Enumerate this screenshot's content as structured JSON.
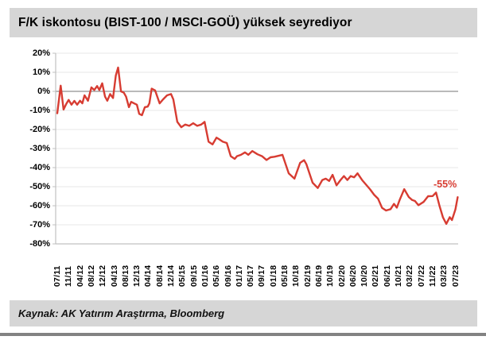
{
  "title": "F/K iskontosu (BIST-100 / MSCI-GOÜ) yüksek seyrediyor",
  "source": "Kaynak: AK Yatırım Araştırma, Bloomberg",
  "annotation_text": "-55%",
  "colors": {
    "line": "#d73c32",
    "annotation": "#d73c32",
    "panel_bg": "#d6d6d6",
    "grid": "#e7e7e7",
    "zero_line": "#a3a3a3",
    "axis": "#c0c0c0"
  },
  "chart_data": {
    "type": "line",
    "title": "F/K iskontosu (BIST-100 / MSCI-GOÜ) yüksek seyrediyor",
    "xlabel": "",
    "ylabel": "",
    "ylim": [
      -80,
      20
    ],
    "grid": "horizontal",
    "legend": "none",
    "yticklabels": [
      "20%",
      "10%",
      "0%",
      "-10%",
      "-20%",
      "-30%",
      "-40%",
      "-50%",
      "-60%",
      "-70%",
      "-80%"
    ],
    "yticks": [
      20,
      10,
      0,
      -10,
      -20,
      -30,
      -40,
      -50,
      -60,
      -70,
      -80
    ],
    "xticklabels": [
      "07/11",
      "11/11",
      "04/12",
      "08/12",
      "12/12",
      "04/13",
      "08/13",
      "12/13",
      "04/14",
      "08/14",
      "12/14",
      "05/15",
      "09/15",
      "01/16",
      "05/16",
      "09/16",
      "01/17",
      "05/17",
      "09/17",
      "01/18",
      "05/18",
      "10/18",
      "02/19",
      "06/19",
      "10/19",
      "02/20",
      "06/20",
      "10/20",
      "02/21",
      "06/21",
      "10/21",
      "03/22",
      "07/22",
      "11/22",
      "03/23",
      "07/23"
    ],
    "annotation": {
      "text": "-55%",
      "at_x": "07/23",
      "value": -55
    },
    "series": [
      {
        "name": "F/K iskontosu (BIST-100 / MSCI-GOÜ)",
        "color": "#d73c32",
        "points": [
          [
            0,
            -11.5
          ],
          [
            0.3,
            3
          ],
          [
            0.55,
            -9.5
          ],
          [
            0.8,
            -6.5
          ],
          [
            1.0,
            -4.5
          ],
          [
            1.25,
            -7
          ],
          [
            1.5,
            -5
          ],
          [
            1.75,
            -7
          ],
          [
            2.0,
            -4.9
          ],
          [
            2.2,
            -6.3
          ],
          [
            2.4,
            -2.1
          ],
          [
            2.7,
            -4.9
          ],
          [
            3.0,
            2.1
          ],
          [
            3.25,
            0.7
          ],
          [
            3.5,
            2.8
          ],
          [
            3.7,
            0.7
          ],
          [
            3.95,
            4.2
          ],
          [
            4.2,
            -2.8
          ],
          [
            4.4,
            -4.9
          ],
          [
            4.65,
            -1.4
          ],
          [
            4.9,
            -3.5
          ],
          [
            5.15,
            8.3
          ],
          [
            5.35,
            12.5
          ],
          [
            5.6,
            0
          ],
          [
            5.85,
            -0.7
          ],
          [
            6.05,
            -2.8
          ],
          [
            6.3,
            -8.3
          ],
          [
            6.5,
            -5.5
          ],
          [
            6.75,
            -6.3
          ],
          [
            7.0,
            -7
          ],
          [
            7.2,
            -11.8
          ],
          [
            7.45,
            -12.5
          ],
          [
            7.7,
            -8.3
          ],
          [
            7.95,
            -8
          ],
          [
            8.1,
            -6.3
          ],
          [
            8.3,
            1.4
          ],
          [
            8.6,
            0.5
          ],
          [
            9.0,
            -6.3
          ],
          [
            9.3,
            -4.2
          ],
          [
            9.65,
            -2.1
          ],
          [
            10.0,
            -1.4
          ],
          [
            10.2,
            -4.2
          ],
          [
            10.55,
            -16
          ],
          [
            10.9,
            -18.8
          ],
          [
            11.25,
            -17.4
          ],
          [
            11.6,
            -18.1
          ],
          [
            11.95,
            -16.7
          ],
          [
            12.3,
            -18.1
          ],
          [
            12.65,
            -17.4
          ],
          [
            12.95,
            -16
          ],
          [
            13.3,
            -26.4
          ],
          [
            13.65,
            -27.8
          ],
          [
            14.0,
            -24.3
          ],
          [
            14.2,
            -25
          ],
          [
            14.55,
            -26.4
          ],
          [
            14.9,
            -27.1
          ],
          [
            15.25,
            -34
          ],
          [
            15.6,
            -35.4
          ],
          [
            15.8,
            -34
          ],
          [
            16.15,
            -33.3
          ],
          [
            16.5,
            -32
          ],
          [
            16.8,
            -33.3
          ],
          [
            17.15,
            -31.3
          ],
          [
            17.6,
            -33
          ],
          [
            18.0,
            -34
          ],
          [
            18.4,
            -36
          ],
          [
            18.75,
            -34.6
          ],
          [
            19.1,
            -34.3
          ],
          [
            19.8,
            -33.3
          ],
          [
            20.35,
            -43
          ],
          [
            20.85,
            -45.8
          ],
          [
            21.35,
            -37.5
          ],
          [
            21.7,
            -36.1
          ],
          [
            21.9,
            -38.2
          ],
          [
            22.45,
            -47.9
          ],
          [
            22.9,
            -50.7
          ],
          [
            23.3,
            -46.5
          ],
          [
            23.6,
            -45.8
          ],
          [
            23.9,
            -47
          ],
          [
            24.2,
            -43.8
          ],
          [
            24.55,
            -49.3
          ],
          [
            24.9,
            -46.5
          ],
          [
            25.2,
            -44.4
          ],
          [
            25.5,
            -46.5
          ],
          [
            25.8,
            -44.4
          ],
          [
            26.1,
            -45.1
          ],
          [
            26.4,
            -43
          ],
          [
            26.8,
            -46.5
          ],
          [
            27.1,
            -48.6
          ],
          [
            27.5,
            -51.4
          ],
          [
            27.85,
            -54.2
          ],
          [
            28.2,
            -56.3
          ],
          [
            28.55,
            -61.1
          ],
          [
            28.9,
            -62.5
          ],
          [
            29.3,
            -61.8
          ],
          [
            29.6,
            -59
          ],
          [
            29.85,
            -61
          ],
          [
            30.1,
            -57
          ],
          [
            30.5,
            -51.3
          ],
          [
            30.9,
            -55.4
          ],
          [
            31.2,
            -57
          ],
          [
            31.45,
            -57.5
          ],
          [
            31.75,
            -59.7
          ],
          [
            32.2,
            -58
          ],
          [
            32.6,
            -55
          ],
          [
            33.0,
            -54.9
          ],
          [
            33.3,
            -53.1
          ],
          [
            33.6,
            -60
          ],
          [
            33.9,
            -66
          ],
          [
            34.2,
            -69.5
          ],
          [
            34.5,
            -66
          ],
          [
            34.7,
            -67.5
          ],
          [
            35.0,
            -62
          ],
          [
            35.2,
            -55.5
          ]
        ]
      }
    ]
  }
}
